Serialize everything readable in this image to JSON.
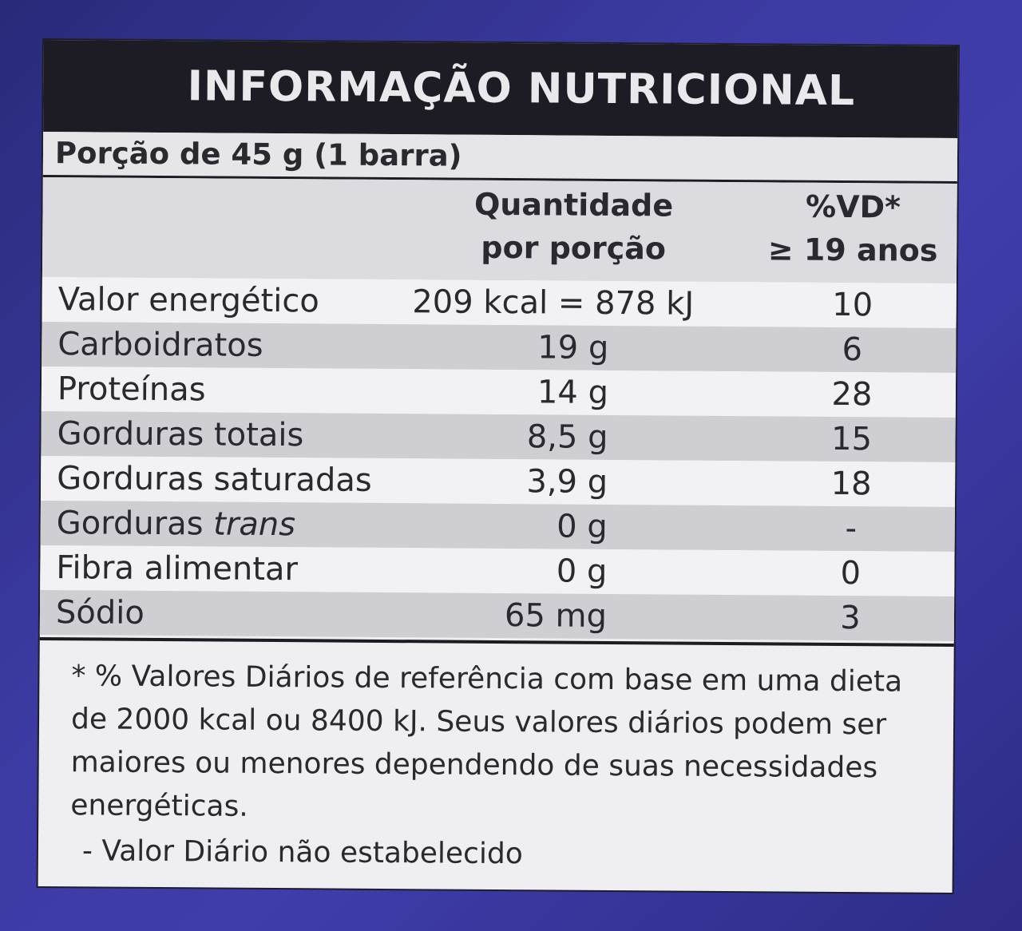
{
  "title": "INFORMAÇÃO NUTRICIONAL",
  "portion": "Porção de 45 g (1 barra)",
  "columns": {
    "qty_line1": "Quantidade",
    "qty_line2": "por porção",
    "vd_line1": "%VD*",
    "vd_line2": "≥ 19 anos"
  },
  "rows": [
    {
      "name": "Valor energético",
      "qty": "209 kcal = 878 kJ",
      "vd": "10"
    },
    {
      "name": "Carboidratos",
      "qty": "19 g",
      "vd": "6"
    },
    {
      "name": "Proteínas",
      "qty": "14 g",
      "vd": "28"
    },
    {
      "name": "Gorduras totais",
      "qty": "8,5 g",
      "vd": "15"
    },
    {
      "name": "Gorduras saturadas",
      "qty": "3,9 g",
      "vd": "18"
    },
    {
      "name_prefix": "Gorduras ",
      "name_italic": "trans",
      "qty": "0 g",
      "vd": "-"
    },
    {
      "name": "Fibra alimentar",
      "qty": "0 g",
      "vd": "0"
    },
    {
      "name": "Sódio",
      "qty": "65 mg",
      "vd": "3"
    }
  ],
  "footnote": "* % Valores Diários de referência com base em uma dieta de 2000 kcal ou 8400 kJ. Seus valores diários podem ser maiores ou menores dependendo de suas necessidades energéticas.",
  "footnote_dash": "- Valor Diário não estabelecido",
  "colors": {
    "background": "#3c3ba3",
    "title_bar": "#1d1c24",
    "label": "#efeef0"
  }
}
